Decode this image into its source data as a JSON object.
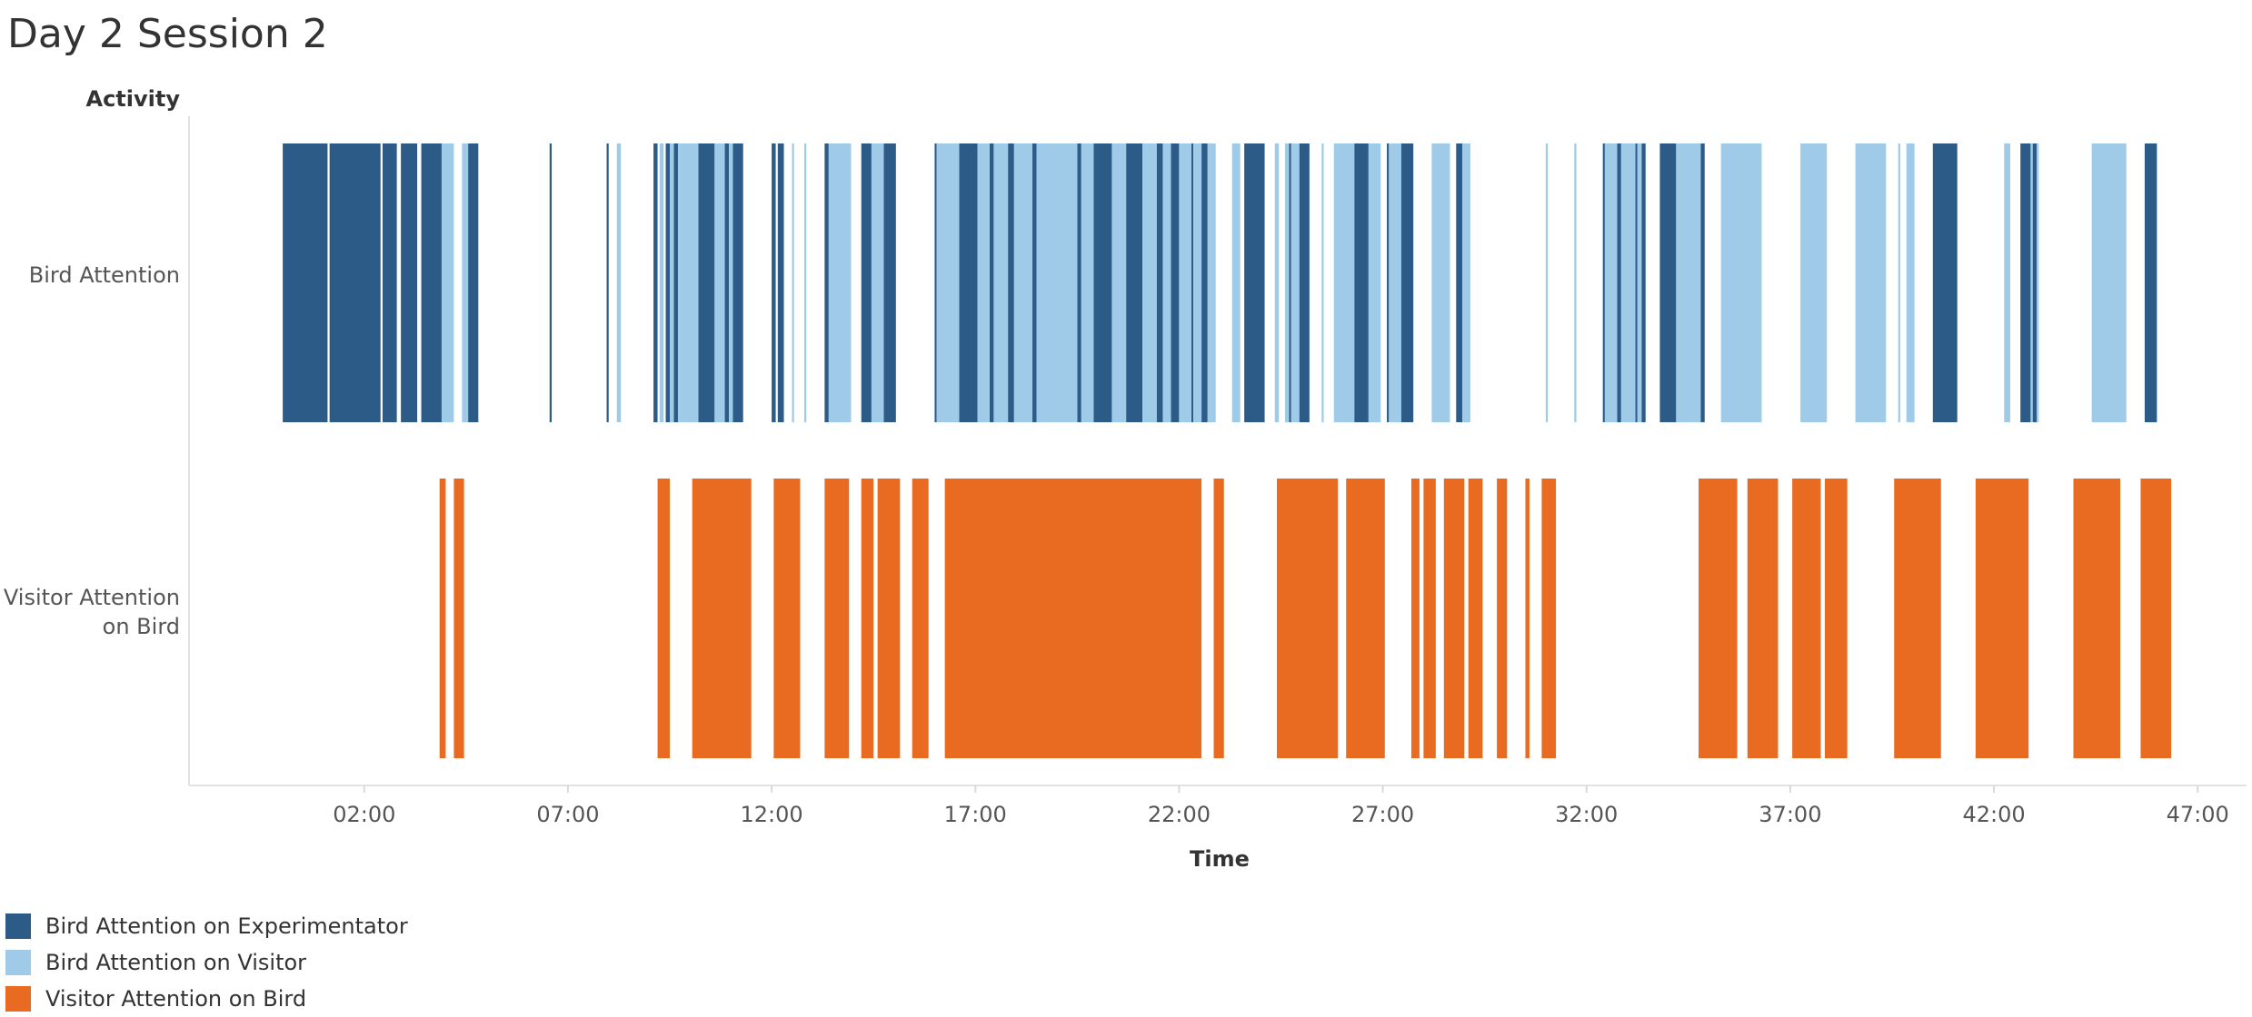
{
  "title": "Day 2 Session 2",
  "legend": [
    {
      "label": "Bird Attention on Experimentator",
      "color": "#2d5b88"
    },
    {
      "label": "Bird Attention on Visitor",
      "color": "#a0cbe8"
    },
    {
      "label": "Visitor Attention on Bird",
      "color": "#e86b21"
    }
  ],
  "chart_data": {
    "type": "bar",
    "orientation": "horizontal-timeline",
    "title": "Day 2 Session 2",
    "xlabel": "Time",
    "ylabel": "Activity",
    "x_unit": "minutes",
    "x_ticks": [
      "02:00",
      "07:00",
      "12:00",
      "17:00",
      "22:00",
      "27:00",
      "32:00",
      "37:00",
      "42:00",
      "47:00"
    ],
    "xlim": [
      -2.3,
      48.2
    ],
    "categories": [
      "Bird Attention",
      "Visitor Attention on Bird"
    ],
    "grid": false,
    "legend_position": "bottom-left",
    "series": [
      {
        "name": "Bird Attention on Experimentator",
        "category": "Bird Attention",
        "color": "#2d5b88",
        "segments": [
          [
            0.0,
            1.1
          ],
          [
            1.15,
            2.4
          ],
          [
            2.45,
            2.8
          ],
          [
            2.9,
            3.3
          ],
          [
            3.4,
            3.9
          ],
          [
            4.55,
            4.8
          ],
          [
            6.55,
            6.6
          ],
          [
            7.95,
            8.0
          ],
          [
            9.1,
            9.2
          ],
          [
            9.4,
            9.5
          ],
          [
            9.6,
            9.7
          ],
          [
            10.2,
            10.6
          ],
          [
            10.85,
            10.95
          ],
          [
            11.05,
            11.3
          ],
          [
            12.0,
            12.1
          ],
          [
            12.15,
            12.3
          ],
          [
            13.3,
            13.4
          ],
          [
            14.2,
            14.45
          ],
          [
            14.75,
            15.05
          ],
          [
            16.0,
            16.05
          ],
          [
            16.6,
            17.05
          ],
          [
            17.35,
            17.45
          ],
          [
            17.8,
            17.95
          ],
          [
            18.4,
            18.5
          ],
          [
            19.5,
            19.6
          ],
          [
            19.9,
            20.35
          ],
          [
            20.7,
            21.1
          ],
          [
            21.45,
            21.6
          ],
          [
            21.8,
            22.0
          ],
          [
            22.3,
            22.35
          ],
          [
            22.55,
            22.7
          ],
          [
            23.6,
            24.1
          ],
          [
            24.7,
            24.75
          ],
          [
            24.95,
            25.2
          ],
          [
            26.3,
            26.65
          ],
          [
            27.1,
            27.15
          ],
          [
            27.45,
            27.75
          ],
          [
            28.8,
            28.95
          ],
          [
            32.4,
            32.45
          ],
          [
            32.75,
            32.85
          ],
          [
            33.2,
            33.25
          ],
          [
            33.35,
            33.45
          ],
          [
            33.8,
            34.2
          ],
          [
            34.8,
            34.9
          ],
          [
            40.5,
            41.1
          ],
          [
            42.65,
            42.9
          ],
          [
            42.95,
            43.05
          ],
          [
            45.7,
            46.0
          ]
        ]
      },
      {
        "name": "Bird Attention on Visitor",
        "category": "Bird Attention",
        "color": "#a0cbe8",
        "segments": [
          [
            3.9,
            4.2
          ],
          [
            4.4,
            4.55
          ],
          [
            8.2,
            8.3
          ],
          [
            9.25,
            9.35
          ],
          [
            9.5,
            9.6
          ],
          [
            9.7,
            10.2
          ],
          [
            10.6,
            10.85
          ],
          [
            10.95,
            11.05
          ],
          [
            12.5,
            12.55
          ],
          [
            12.8,
            12.85
          ],
          [
            13.4,
            13.95
          ],
          [
            14.45,
            14.75
          ],
          [
            16.05,
            16.6
          ],
          [
            17.05,
            17.35
          ],
          [
            17.45,
            17.8
          ],
          [
            17.95,
            18.4
          ],
          [
            18.5,
            19.5
          ],
          [
            19.6,
            19.9
          ],
          [
            20.35,
            20.7
          ],
          [
            21.1,
            21.45
          ],
          [
            21.6,
            21.8
          ],
          [
            22.0,
            22.3
          ],
          [
            22.35,
            22.55
          ],
          [
            22.7,
            22.9
          ],
          [
            23.3,
            23.5
          ],
          [
            24.35,
            24.45
          ],
          [
            24.6,
            24.7
          ],
          [
            24.75,
            24.95
          ],
          [
            25.5,
            25.55
          ],
          [
            25.8,
            26.3
          ],
          [
            26.65,
            26.95
          ],
          [
            27.15,
            27.45
          ],
          [
            28.2,
            28.65
          ],
          [
            28.95,
            29.15
          ],
          [
            31.0,
            31.05
          ],
          [
            31.7,
            31.75
          ],
          [
            32.45,
            32.75
          ],
          [
            32.85,
            33.2
          ],
          [
            33.25,
            33.35
          ],
          [
            34.2,
            34.8
          ],
          [
            35.3,
            36.3
          ],
          [
            37.25,
            37.9
          ],
          [
            38.6,
            39.35
          ],
          [
            39.65,
            39.7
          ],
          [
            39.85,
            40.05
          ],
          [
            42.25,
            42.4
          ],
          [
            42.9,
            42.95
          ],
          [
            43.05,
            43.1
          ],
          [
            44.4,
            45.25
          ]
        ]
      },
      {
        "name": "Visitor Attention on Bird",
        "category": "Visitor Attention on Bird",
        "color": "#e86b21",
        "segments": [
          [
            3.85,
            4.0
          ],
          [
            4.2,
            4.45
          ],
          [
            9.2,
            9.5
          ],
          [
            10.05,
            11.5
          ],
          [
            12.05,
            12.7
          ],
          [
            13.3,
            13.9
          ],
          [
            14.2,
            14.5
          ],
          [
            14.6,
            15.15
          ],
          [
            15.45,
            15.85
          ],
          [
            16.25,
            22.55
          ],
          [
            22.85,
            23.1
          ],
          [
            24.4,
            25.9
          ],
          [
            26.1,
            27.05
          ],
          [
            27.7,
            27.9
          ],
          [
            28.0,
            28.3
          ],
          [
            28.5,
            29.0
          ],
          [
            29.1,
            29.45
          ],
          [
            29.8,
            30.05
          ],
          [
            30.5,
            30.6
          ],
          [
            30.9,
            31.25
          ],
          [
            34.75,
            35.7
          ],
          [
            35.95,
            36.7
          ],
          [
            37.05,
            37.75
          ],
          [
            37.85,
            38.4
          ],
          [
            39.55,
            40.7
          ],
          [
            41.55,
            42.85
          ],
          [
            43.95,
            45.1
          ],
          [
            45.6,
            46.35
          ]
        ]
      }
    ]
  }
}
